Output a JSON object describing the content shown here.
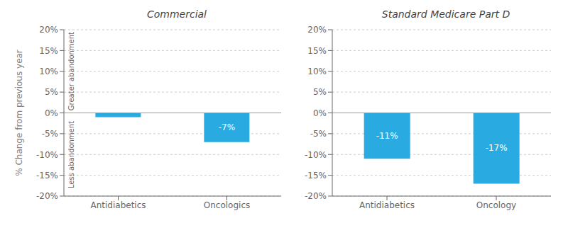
{
  "chart_data": [
    {
      "type": "bar",
      "title": "Commercial",
      "ylabel": "% Change from previous year",
      "categories": [
        "Antidiabetics",
        "Oncologics"
      ],
      "values": [
        -1,
        -7
      ],
      "value_labels": [
        null,
        "-7%"
      ],
      "data_labels": true,
      "color": "#29ABE2",
      "ylim": [
        -20,
        20
      ],
      "yticks": [
        {
          "value": -20,
          "label": "-20%"
        },
        {
          "value": -15,
          "label": "-15%"
        },
        {
          "value": -10,
          "label": "-10%"
        },
        {
          "value": -5,
          "label": "-5%"
        },
        {
          "value": 0,
          "label": "0%"
        },
        {
          "value": 5,
          "label": "5%"
        },
        {
          "value": 10,
          "label": "10%"
        },
        {
          "value": 15,
          "label": "15%"
        },
        {
          "value": 20,
          "label": "20%"
        }
      ],
      "grid": true,
      "annotations": [
        "Greater abandonment",
        "Less abandonment"
      ]
    },
    {
      "type": "bar",
      "title": "Standard Medicare Part D",
      "categories": [
        "Antidiabetics",
        "Oncology"
      ],
      "values": [
        -11,
        -17
      ],
      "value_labels": [
        "-11%",
        "-17%"
      ],
      "data_labels": true,
      "color": "#29ABE2",
      "ylim": [
        -20,
        20
      ],
      "yticks": [
        {
          "value": -20,
          "label": "-20%"
        },
        {
          "value": -15,
          "label": "-15%"
        },
        {
          "value": -10,
          "label": "-10%"
        },
        {
          "value": -5,
          "label": "-5%"
        },
        {
          "value": 0,
          "label": "0%"
        },
        {
          "value": 5,
          "label": "5%"
        },
        {
          "value": 10,
          "label": "10%"
        },
        {
          "value": 15,
          "label": "15%"
        },
        {
          "value": 20,
          "label": "20%"
        }
      ],
      "grid": true
    }
  ]
}
